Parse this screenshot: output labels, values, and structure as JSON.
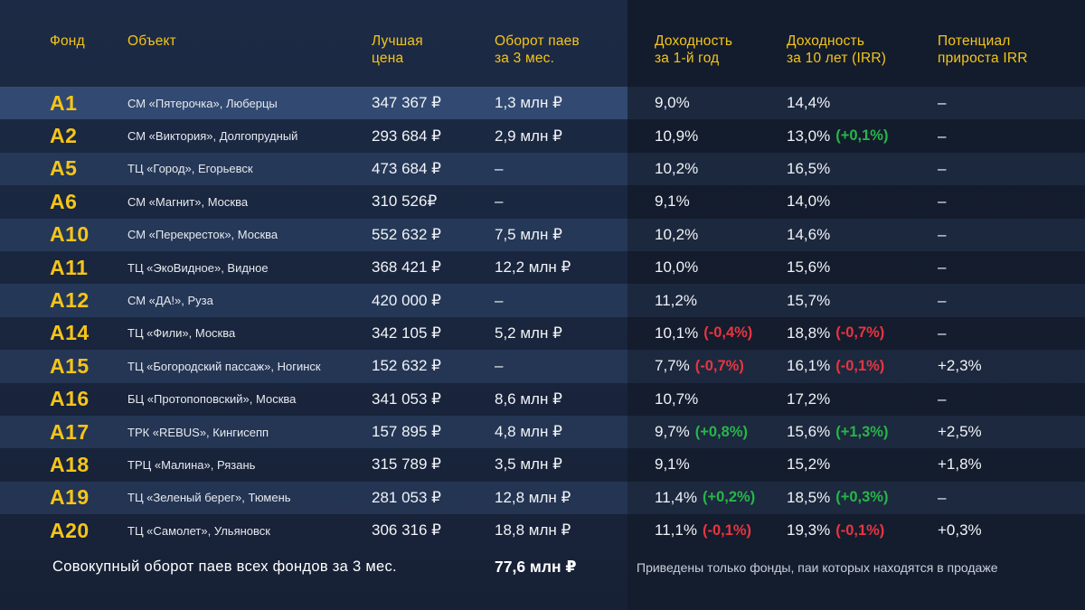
{
  "colors": {
    "accent": "#f5c518",
    "positive": "#28b54a",
    "negative": "#e8353f"
  },
  "header": {
    "fund": "Фонд",
    "object": "Объект",
    "best_price": "Лучшая\nцена",
    "turnover": "Оборот паев\nза 3 мес.",
    "yield_1y": "Доходность\nза 1-й год",
    "yield_10y": "Доходность\nза 10 лет (IRR)",
    "growth": "Потенциал\nприроста IRR"
  },
  "chart_data": {
    "type": "table",
    "columns": [
      "Фонд",
      "Объект",
      "Лучшая цена",
      "Оборот паев за 3 мес.",
      "Доходность за 1-й год",
      "Доходность за 10 лет (IRR)",
      "Потенциал прироста IRR"
    ],
    "rows": [
      {
        "fund": "A1",
        "object": "СМ «Пятерочка», Люберцы",
        "price": "347 367 ₽",
        "turnover": "1,3 млн ₽",
        "y1": "9,0%",
        "y1_delta": "",
        "y10": "14,4%",
        "y10_delta": "",
        "growth": "–"
      },
      {
        "fund": "A2",
        "object": "СМ «Виктория», Долгопрудный",
        "price": "293 684 ₽",
        "turnover": "2,9 млн ₽",
        "y1": "10,9%",
        "y1_delta": "",
        "y10": "13,0%",
        "y10_delta": "(+0,1%)",
        "growth": "–"
      },
      {
        "fund": "A5",
        "object": "ТЦ «Город», Егорьевск",
        "price": "473 684 ₽",
        "turnover": "–",
        "y1": "10,2%",
        "y1_delta": "",
        "y10": "16,5%",
        "y10_delta": "",
        "growth": "–"
      },
      {
        "fund": "A6",
        "object": "СМ «Магнит», Москва",
        "price": "310 526₽",
        "turnover": "–",
        "y1": "9,1%",
        "y1_delta": "",
        "y10": "14,0%",
        "y10_delta": "",
        "growth": "–"
      },
      {
        "fund": "A10",
        "object": "СМ «Перекресток», Москва",
        "price": "552 632 ₽",
        "turnover": "7,5 млн ₽",
        "y1": "10,2%",
        "y1_delta": "",
        "y10": "14,6%",
        "y10_delta": "",
        "growth": "–"
      },
      {
        "fund": "A11",
        "object": "ТЦ «ЭкоВидное», Видное",
        "price": "368 421 ₽",
        "turnover": "12,2 млн ₽",
        "y1": "10,0%",
        "y1_delta": "",
        "y10": "15,6%",
        "y10_delta": "",
        "growth": "–"
      },
      {
        "fund": "A12",
        "object": "СМ «ДА!», Руза",
        "price": "420 000 ₽",
        "turnover": "–",
        "y1": "11,2%",
        "y1_delta": "",
        "y10": "15,7%",
        "y10_delta": "",
        "growth": "–"
      },
      {
        "fund": "A14",
        "object": "ТЦ «Фили», Москва",
        "price": "342 105 ₽",
        "turnover": "5,2 млн ₽",
        "y1": "10,1%",
        "y1_delta": "(-0,4%)",
        "y10": "18,8%",
        "y10_delta": "(-0,7%)",
        "growth": "–"
      },
      {
        "fund": "A15",
        "object": "ТЦ «Богородский пассаж», Ногинск",
        "price": "152 632 ₽",
        "turnover": "–",
        "y1": "7,7%",
        "y1_delta": "(-0,7%)",
        "y10": "16,1%",
        "y10_delta": "(-0,1%)",
        "growth": "+2,3%"
      },
      {
        "fund": "A16",
        "object": "БЦ «Протопоповский», Москва",
        "price": "341 053 ₽",
        "turnover": "8,6 млн ₽",
        "y1": "10,7%",
        "y1_delta": "",
        "y10": "17,2%",
        "y10_delta": "",
        "growth": "–"
      },
      {
        "fund": "A17",
        "object": "ТРК «REBUS», Кингисепп",
        "price": "157 895 ₽",
        "turnover": "4,8 млн ₽",
        "y1": "9,7%",
        "y1_delta": "(+0,8%)",
        "y10": "15,6%",
        "y10_delta": "(+1,3%)",
        "growth": "+2,5%"
      },
      {
        "fund": "A18",
        "object": "ТРЦ «Малина», Рязань",
        "price": "315 789 ₽",
        "turnover": "3,5 млн ₽",
        "y1": "9,1%",
        "y1_delta": "",
        "y10": "15,2%",
        "y10_delta": "",
        "growth": "+1,8%"
      },
      {
        "fund": "A19",
        "object": "ТЦ «Зеленый берег», Тюмень",
        "price": "281 053 ₽",
        "turnover": "12,8 млн ₽",
        "y1": "11,4%",
        "y1_delta": "(+0,2%)",
        "y10": "18,5%",
        "y10_delta": "(+0,3%)",
        "growth": "–"
      },
      {
        "fund": "A20",
        "object": "ТЦ «Самолет», Ульяновск",
        "price": "306 316 ₽",
        "turnover": "18,8 млн ₽",
        "y1": "11,1%",
        "y1_delta": "(-0,1%)",
        "y10": "19,3%",
        "y10_delta": "(-0,1%)",
        "growth": "+0,3%"
      }
    ]
  },
  "footer": {
    "label": "Совокупный оборот паев всех фондов за 3 мес.",
    "total": "77,6 млн ₽",
    "note": "Приведены только фонды, паи которых находятся в продаже"
  }
}
